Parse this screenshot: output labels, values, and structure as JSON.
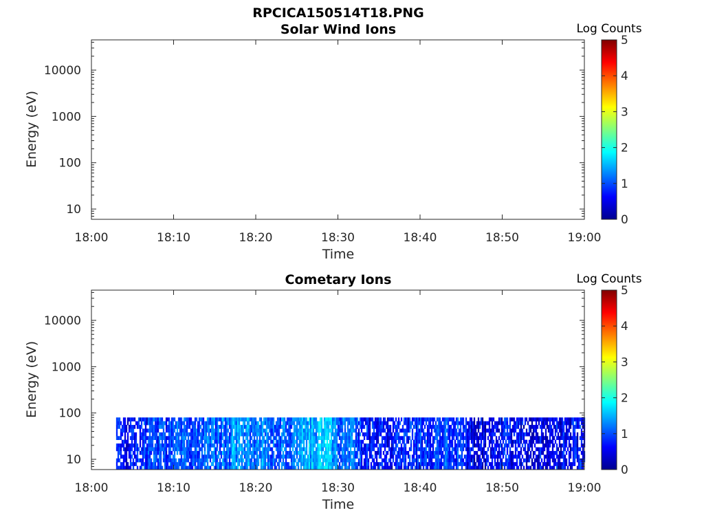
{
  "figure": {
    "title": "RPCICA150514T18.PNG"
  },
  "chart_data": [
    {
      "type": "heatmap",
      "title": "Solar Wind Ions",
      "xlabel": "Time",
      "ylabel": "Energy (eV)",
      "x_tick_labels": [
        "18:00",
        "18:10",
        "18:20",
        "18:30",
        "18:40",
        "18:50",
        "19:00"
      ],
      "xlim": [
        "18:00",
        "19:00"
      ],
      "y_scale": "log",
      "y_tick_labels": [
        "10",
        "100",
        "1000",
        "10000"
      ],
      "ylim": [
        6,
        45000
      ],
      "colorbar": {
        "label": "Log Counts",
        "range": [
          0,
          5
        ],
        "tick_labels": [
          "0",
          "1",
          "2",
          "3",
          "4",
          "5"
        ],
        "colormap": "jet"
      },
      "grid": false,
      "data": []
    },
    {
      "type": "heatmap",
      "title": "Cometary Ions",
      "xlabel": "Time",
      "ylabel": "Energy (eV)",
      "x_tick_labels": [
        "18:00",
        "18:10",
        "18:20",
        "18:30",
        "18:40",
        "18:50",
        "19:00"
      ],
      "xlim": [
        "18:00",
        "19:00"
      ],
      "y_scale": "log",
      "y_tick_labels": [
        "10",
        "100",
        "1000",
        "10000"
      ],
      "ylim": [
        6,
        45000
      ],
      "colorbar": {
        "label": "Log Counts",
        "range": [
          0,
          5
        ],
        "tick_labels": [
          "0",
          "1",
          "2",
          "3",
          "4",
          "5"
        ],
        "colormap": "jet"
      },
      "grid": false,
      "data": {
        "time_range": [
          "18:03",
          "19:00"
        ],
        "energy_range_eV": [
          6,
          80
        ],
        "time_profile": [
          {
            "time": "18:03",
            "intensity": 0.5
          },
          {
            "time": "18:06",
            "intensity": 0.7
          },
          {
            "time": "18:10",
            "intensity": 0.8
          },
          {
            "time": "18:14",
            "intensity": 0.9
          },
          {
            "time": "18:17",
            "intensity": 1.2
          },
          {
            "time": "18:20",
            "intensity": 1.3
          },
          {
            "time": "18:23",
            "intensity": 1.0
          },
          {
            "time": "18:26",
            "intensity": 1.4
          },
          {
            "time": "18:28",
            "intensity": 1.5
          },
          {
            "time": "18:31",
            "intensity": 1.0
          },
          {
            "time": "18:34",
            "intensity": 0.6
          },
          {
            "time": "18:38",
            "intensity": 0.6
          },
          {
            "time": "18:41",
            "intensity": 0.8
          },
          {
            "time": "18:44",
            "intensity": 0.9
          },
          {
            "time": "18:47",
            "intensity": 0.4
          },
          {
            "time": "18:50",
            "intensity": 0.6
          },
          {
            "time": "18:53",
            "intensity": 0.5
          },
          {
            "time": "18:56",
            "intensity": 0.5
          },
          {
            "time": "19:00",
            "intensity": 0.6
          }
        ]
      }
    }
  ]
}
